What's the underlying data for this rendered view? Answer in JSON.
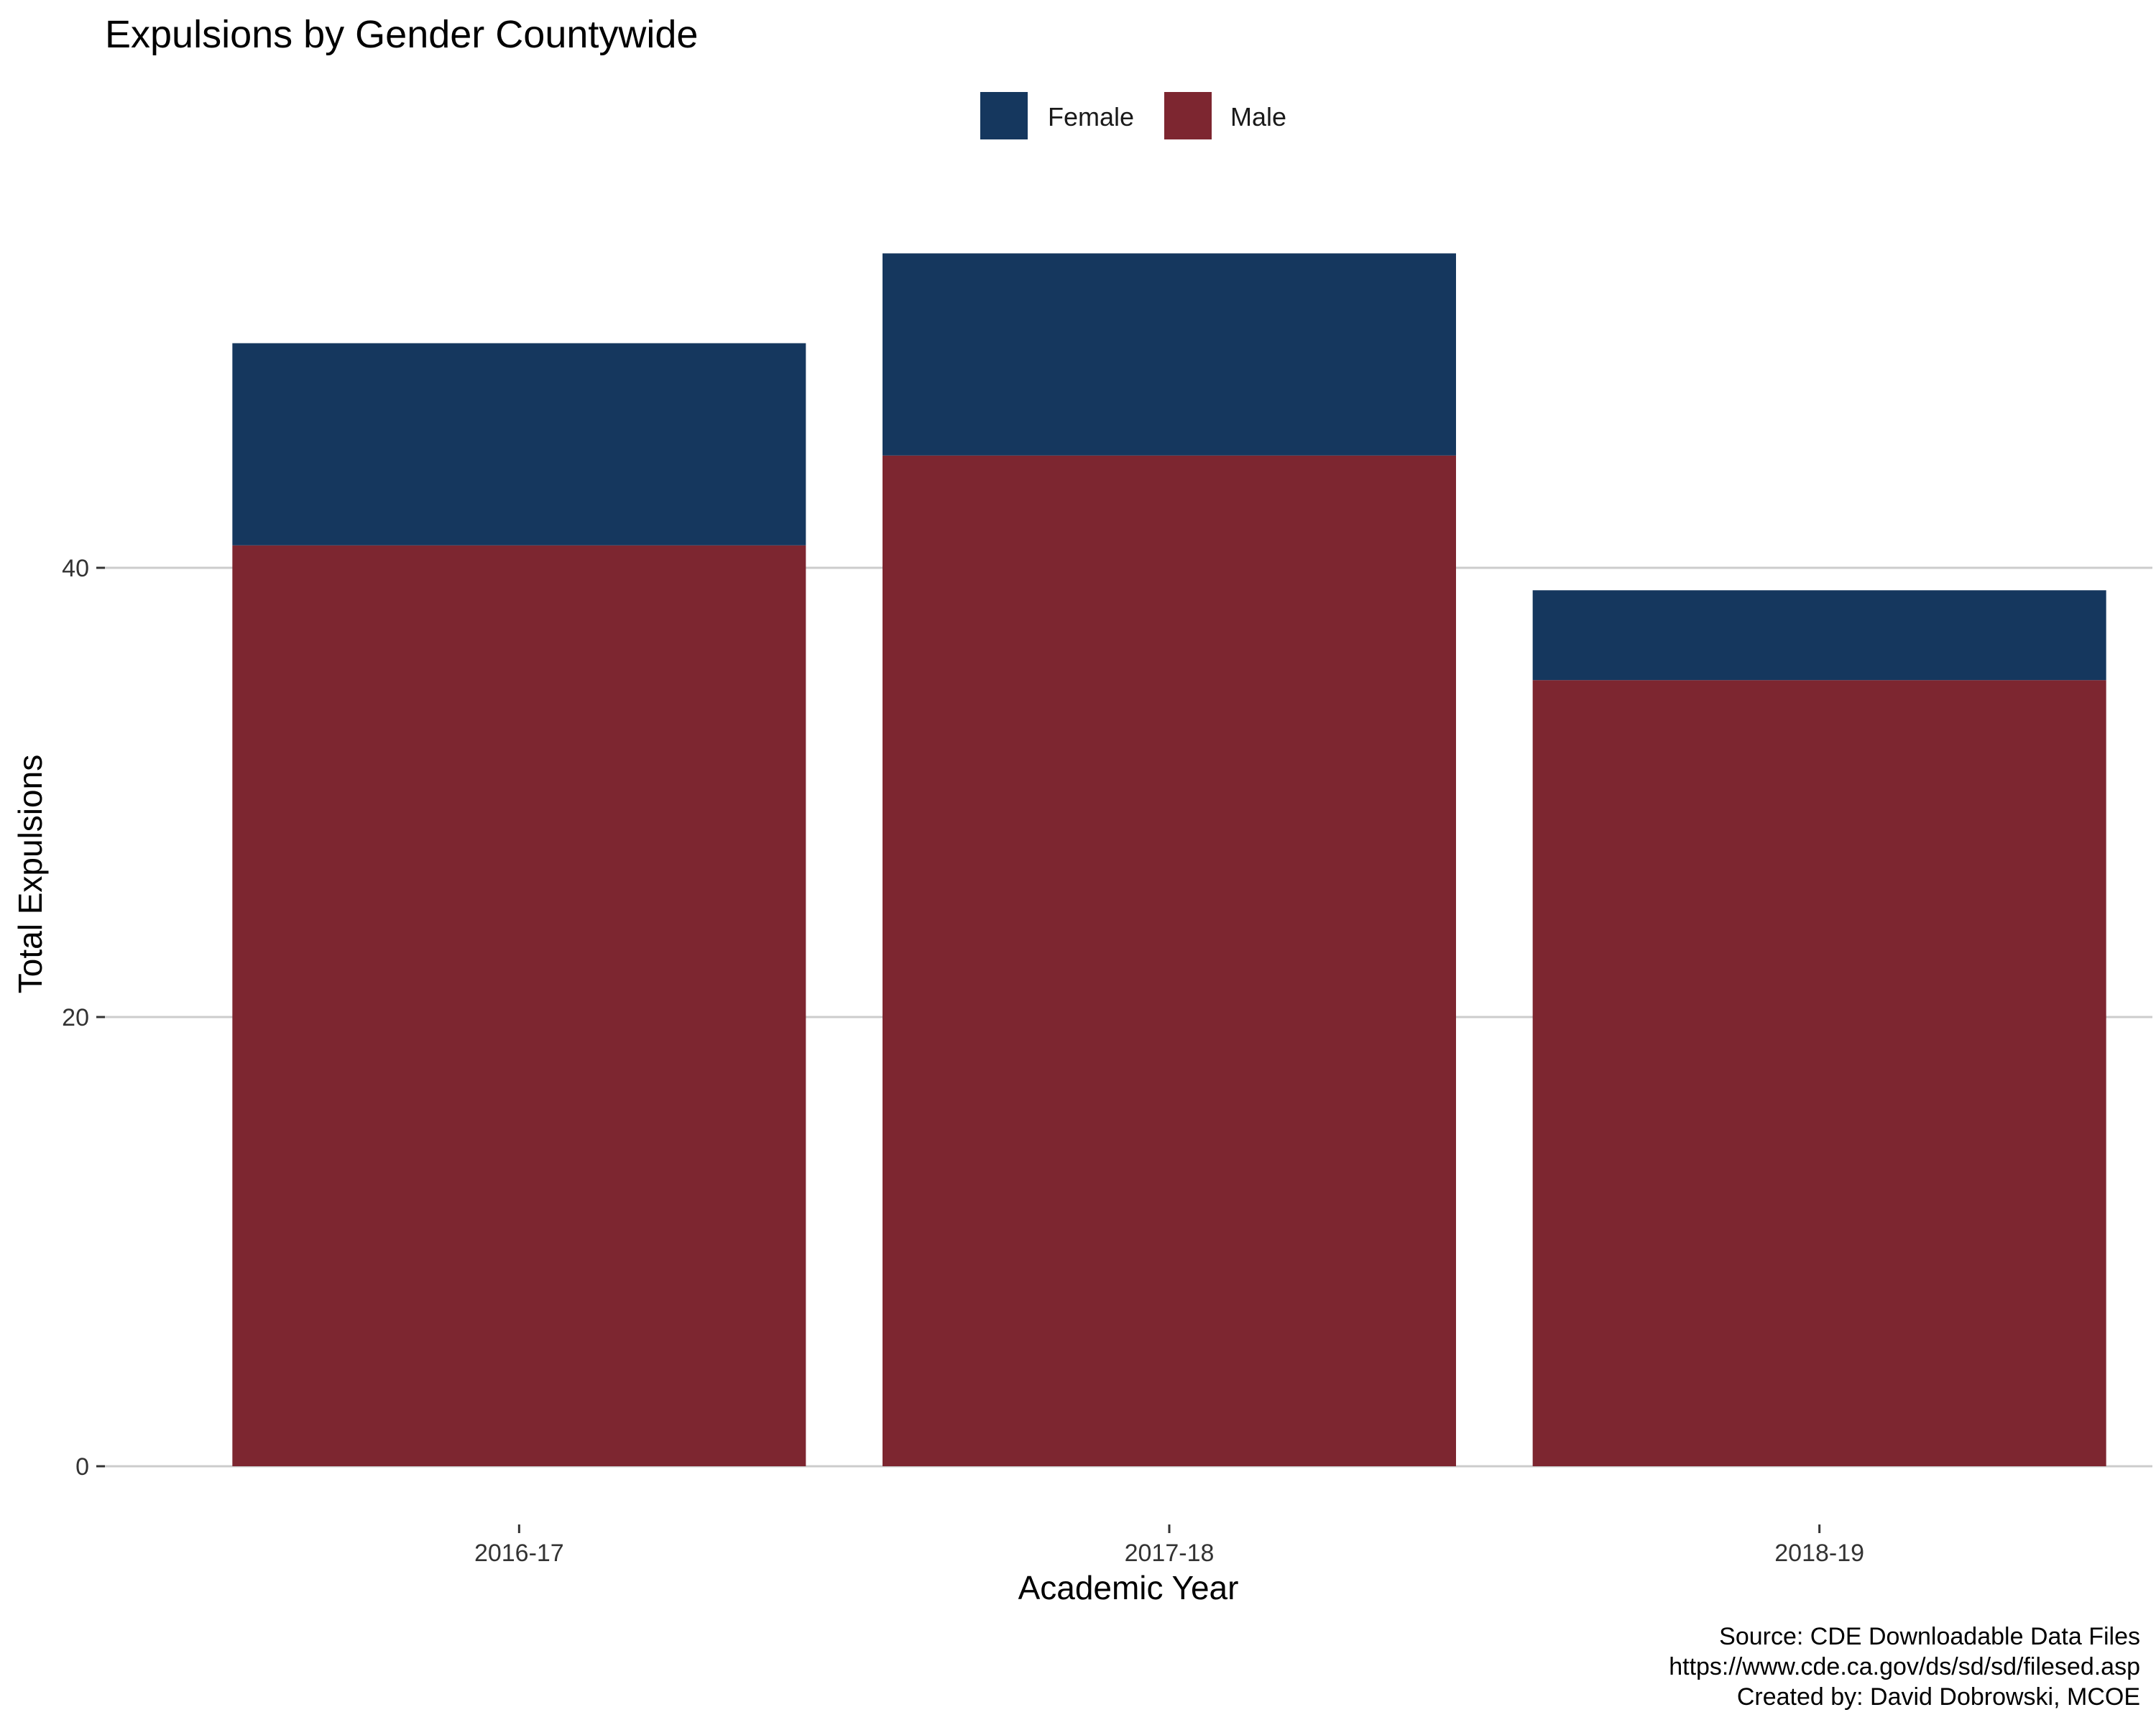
{
  "chart_data": {
    "type": "bar",
    "stacked": true,
    "title": "Expulsions by Gender Countywide",
    "xlabel": "Academic Year",
    "ylabel": "Total Expulsions",
    "categories": [
      "2016-17",
      "2017-18",
      "2018-19"
    ],
    "series": [
      {
        "name": "Male",
        "values": [
          41,
          45,
          35
        ],
        "color": "#7d2630"
      },
      {
        "name": "Female",
        "values": [
          9,
          9,
          4
        ],
        "color": "#15375e"
      }
    ],
    "ylim": [
      0,
      56
    ],
    "yticks": [
      0,
      20,
      40
    ],
    "grid": true,
    "legend": {
      "position": "top",
      "entries": [
        "Female",
        "Male"
      ]
    },
    "caption": [
      "Source: CDE Downloadable Data Files",
      "https://www.cde.ca.gov/ds/sd/sd/filesed.asp",
      "Created by: David Dobrowski, MCOE"
    ]
  }
}
